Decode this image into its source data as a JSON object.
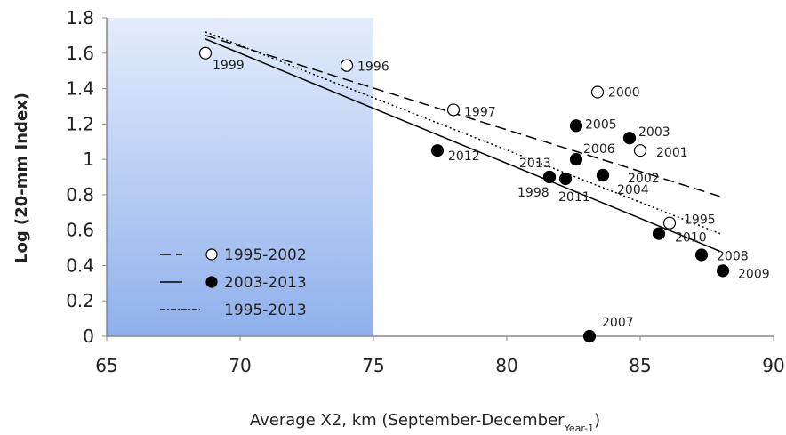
{
  "chart_data": {
    "type": "scatter",
    "xlabel": {
      "text": "Average X2, km (September-December",
      "sub": "Year-1",
      "end": ")"
    },
    "ylabel": "Log (20-mm Index)",
    "xlim": [
      65,
      90
    ],
    "xticks": [
      65,
      70,
      75,
      80,
      85,
      90
    ],
    "ylim": [
      0,
      1.8
    ],
    "yticks": [
      0,
      0.2,
      0.4,
      0.6,
      0.8,
      1,
      1.2,
      1.4,
      1.6,
      1.8
    ],
    "shaded_xrange": [
      65,
      75
    ],
    "series": [
      {
        "name": "1995-2002",
        "marker": "open",
        "line": "dashed",
        "color": "#000000",
        "labels": [
          "1999",
          "1996",
          "1997",
          "2000",
          "2001",
          "1998",
          "2002",
          "1995"
        ],
        "x": [
          68.7,
          74.0,
          78.0,
          83.4,
          85.0,
          81.6,
          83.6,
          86.1
        ],
        "values": [
          1.6,
          1.53,
          1.28,
          1.38,
          1.05,
          0.9,
          0.91,
          0.64
        ],
        "fit": {
          "x": [
            68.7,
            88
          ],
          "values": [
            1.7,
            0.79
          ]
        }
      },
      {
        "name": "2003-2013",
        "marker": "filled",
        "line": "solid",
        "color": "#000000",
        "labels": [
          "2012",
          "2005",
          "2003",
          "2006",
          "2013",
          "2011",
          "2004",
          "2010",
          "2008",
          "2009",
          "2007"
        ],
        "x": [
          77.4,
          82.6,
          84.6,
          82.6,
          81.6,
          82.2,
          83.6,
          85.7,
          87.3,
          88.1,
          83.1
        ],
        "values": [
          1.05,
          1.19,
          1.12,
          1.0,
          0.9,
          0.89,
          0.91,
          0.58,
          0.46,
          0.37,
          0
        ],
        "fit": {
          "x": [
            68.7,
            88
          ],
          "values": [
            1.68,
            0.48
          ]
        }
      },
      {
        "name": "1995-2013",
        "marker": "none",
        "line": "dotted",
        "color": "#000000",
        "fit": {
          "x": [
            68.7,
            88
          ],
          "values": [
            1.72,
            0.58
          ]
        }
      }
    ]
  }
}
